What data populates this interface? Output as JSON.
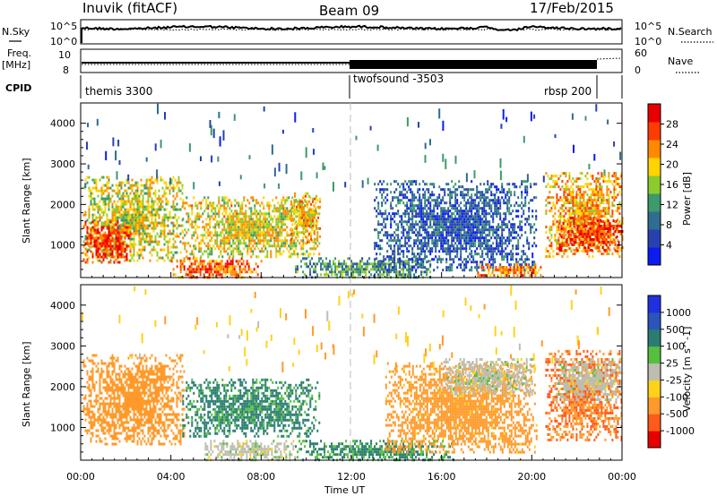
{
  "header": {
    "station": "Inuvik (fitACF)",
    "beam": "Beam 09",
    "date": "17/Feb/2015"
  },
  "top_panels": {
    "nsky_label": "N.Sky",
    "nsky_ticks": [
      "10^5",
      "10^0"
    ],
    "nsearch_label": "N.Search",
    "nsearch_ticks": [
      "10^5",
      "10^0"
    ],
    "freq_label": "Freq.",
    "freq_unit": "[MHz]",
    "freq_ticks": [
      "10",
      "8"
    ],
    "nave_label": "Nave",
    "nave_ticks": [
      "60",
      "0"
    ],
    "cpid_label": "CPID",
    "cpid_modes": [
      {
        "name": "themis 3300",
        "start_h": 0,
        "end_h": 12
      },
      {
        "name": "twofsound -3503",
        "start_h": 12,
        "end_h": 23.5
      },
      {
        "name": "rbsp 200",
        "start_h": 23.5,
        "end_h": 24
      }
    ]
  },
  "chart_data": [
    {
      "type": "heatmap",
      "name": "power",
      "ylabel": "Slant Range [km]",
      "ylim": [
        200,
        4500
      ],
      "xlim": [
        0,
        24
      ],
      "yticks": [
        "1000",
        "2000",
        "3000",
        "4000"
      ],
      "colorbar_label": "Power [dB]",
      "colorbar_ticks": [
        "4",
        "8",
        "12",
        "16",
        "20",
        "24",
        "28"
      ],
      "colorbar_colors": [
        "#0c1cf0",
        "#2742b0",
        "#2e6d8f",
        "#3d9a6a",
        "#8bcb2e",
        "#ffd400",
        "#ff8a00",
        "#ff3c00",
        "#e80000"
      ],
      "regions": [
        {
          "x": [
            0.1,
            4.5
          ],
          "y": [
            600,
            2700
          ],
          "level": 18
        },
        {
          "x": [
            0.1,
            2.2
          ],
          "y": [
            600,
            1600
          ],
          "level": 27
        },
        {
          "x": [
            4.0,
            8.0
          ],
          "y": [
            200,
            700
          ],
          "level": 25
        },
        {
          "x": [
            4.5,
            10.6
          ],
          "y": [
            700,
            2200
          ],
          "level": 19
        },
        {
          "x": [
            9.3,
            10.6
          ],
          "y": [
            1100,
            2300
          ],
          "level": 21
        },
        {
          "x": [
            9.5,
            15.5
          ],
          "y": [
            200,
            700
          ],
          "level": 12
        },
        {
          "x": [
            13.0,
            20.2
          ],
          "y": [
            400,
            2600
          ],
          "level": 7
        },
        {
          "x": [
            17.5,
            20.5
          ],
          "y": [
            250,
            550
          ],
          "level": 24
        },
        {
          "x": [
            20.6,
            24.0
          ],
          "y": [
            700,
            2800
          ],
          "level": 22
        },
        {
          "x": [
            21.2,
            24.0
          ],
          "y": [
            900,
            1700
          ],
          "level": 27
        }
      ]
    },
    {
      "type": "heatmap",
      "name": "velocity",
      "ylabel": "Slant Range [km]",
      "xlabel": "Time UT",
      "ylim": [
        200,
        4500
      ],
      "xlim": [
        0,
        24
      ],
      "yticks": [
        "1000",
        "2000",
        "3000",
        "4000"
      ],
      "x": [
        "00:00",
        "04:00",
        "08:00",
        "12:00",
        "16:00",
        "20:00",
        "00:00"
      ],
      "colorbar_label": "Velocity [m s^-1]",
      "colorbar_ticks": [
        "1000",
        "500",
        "100",
        "25",
        "-25",
        "-100",
        "-500",
        "-1000"
      ],
      "colorbar_colors": [
        "#1f30e0",
        "#2b55b8",
        "#2a7d70",
        "#55c040",
        "#bdbdb0",
        "#ffd21a",
        "#ff9a2a",
        "#ff5a1a",
        "#e80000"
      ],
      "regions": [
        {
          "x": [
            0.1,
            4.6
          ],
          "y": [
            600,
            2800
          ],
          "level": -300
        },
        {
          "x": [
            4.5,
            10.6
          ],
          "y": [
            800,
            2200
          ],
          "level": 150
        },
        {
          "x": [
            5.5,
            9.5
          ],
          "y": [
            200,
            700
          ],
          "level": 0
        },
        {
          "x": [
            9.5,
            16.5
          ],
          "y": [
            200,
            700
          ],
          "level": 120
        },
        {
          "x": [
            13.5,
            20.2
          ],
          "y": [
            400,
            2600
          ],
          "level": -200
        },
        {
          "x": [
            16.0,
            20.0
          ],
          "y": [
            1800,
            2700
          ],
          "level": 0
        },
        {
          "x": [
            20.6,
            24.0
          ],
          "y": [
            700,
            2900
          ],
          "level": -500
        },
        {
          "x": [
            21.0,
            24.0
          ],
          "y": [
            1700,
            2700
          ],
          "level": 0
        }
      ]
    }
  ]
}
